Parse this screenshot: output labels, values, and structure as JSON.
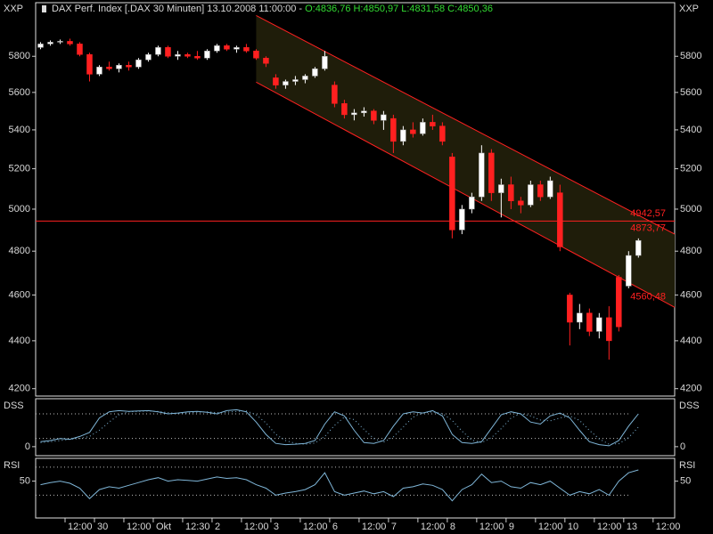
{
  "chart_data": [
    {
      "type": "candlestick",
      "title": "DAX Perf. Index [.DAX  30 Minuten] 13.10.2008 11:00:00 -",
      "ohlc_labels": [
        "O:4836,76",
        "H:4850,97",
        "L:4831,58",
        "C:4850,36"
      ],
      "axis_tag": "XXP",
      "log_scale": true,
      "ylim": [
        4170,
        6110
      ],
      "yticks": [
        4200,
        4400,
        4600,
        4800,
        5000,
        5200,
        5400,
        5600,
        5800
      ],
      "xlim": [
        0,
        65.2
      ],
      "xticks": [
        {
          "value": 3,
          "label": "12:00"
        },
        {
          "value": 6,
          "label": "30"
        },
        {
          "value": 9,
          "label": "12:00"
        },
        {
          "value": 12,
          "label": "Okt"
        },
        {
          "value": 15,
          "label": "12:30"
        },
        {
          "value": 18,
          "label": "2"
        },
        {
          "value": 21,
          "label": "12:00"
        },
        {
          "value": 24,
          "label": "3"
        },
        {
          "value": 27,
          "label": "12:00"
        },
        {
          "value": 30,
          "label": "6"
        },
        {
          "value": 33,
          "label": "12:00"
        },
        {
          "value": 36,
          "label": "7"
        },
        {
          "value": 39,
          "label": "12:00"
        },
        {
          "value": 42,
          "label": "8"
        },
        {
          "value": 45,
          "label": "12:00"
        },
        {
          "value": 48,
          "label": "9"
        },
        {
          "value": 51,
          "label": "12:00"
        },
        {
          "value": 54,
          "label": "10"
        },
        {
          "value": 57,
          "label": "12:00"
        },
        {
          "value": 60,
          "label": "13"
        },
        {
          "value": 63,
          "label": "12:00"
        }
      ],
      "up_color": "#ffffff",
      "down_color": "#ff2020",
      "open": [
        5850,
        5870,
        5880,
        5885,
        5870,
        5810,
        5700,
        5740,
        5730,
        5750,
        5740,
        5780,
        5810,
        5850,
        5800,
        5810,
        5800,
        5790,
        5830,
        5860,
        5840,
        5850,
        5830,
        5790,
        5680,
        5640,
        5660,
        5670,
        5690,
        5730,
        5640,
        5540,
        5480,
        5490,
        5500,
        5450,
        5460,
        5340,
        5400,
        5380,
        5440,
        5420,
        5260,
        4900,
        5000,
        5060,
        5280,
        5080,
        5120,
        5040,
        5020,
        5120,
        5060,
        5080,
        4600,
        4480,
        4520,
        4440,
        4500,
        4680,
        4640,
        4780
      ],
      "high": [
        5880,
        5890,
        5895,
        5900,
        5880,
        5820,
        5750,
        5770,
        5760,
        5770,
        5790,
        5820,
        5860,
        5860,
        5830,
        5820,
        5830,
        5840,
        5870,
        5870,
        5860,
        5870,
        5840,
        5800,
        5700,
        5670,
        5690,
        5700,
        5740,
        5830,
        5660,
        5560,
        5510,
        5520,
        5510,
        5500,
        5480,
        5420,
        5440,
        5460,
        5480,
        5440,
        5280,
        5020,
        5080,
        5320,
        5300,
        5150,
        5160,
        5060,
        5140,
        5140,
        5160,
        5120,
        4610,
        4560,
        4540,
        4520,
        4550,
        4690,
        4800,
        4860
      ],
      "low": [
        5840,
        5860,
        5870,
        5860,
        5800,
        5660,
        5690,
        5720,
        5710,
        5720,
        5730,
        5770,
        5800,
        5790,
        5780,
        5790,
        5780,
        5780,
        5820,
        5830,
        5820,
        5820,
        5780,
        5740,
        5620,
        5620,
        5640,
        5650,
        5680,
        5720,
        5520,
        5460,
        5450,
        5470,
        5430,
        5400,
        5280,
        5320,
        5360,
        5370,
        5400,
        5320,
        4860,
        4880,
        4980,
        5040,
        5040,
        4960,
        5000,
        4980,
        5010,
        5040,
        5050,
        4800,
        4380,
        4450,
        4420,
        4410,
        4320,
        4440,
        4630,
        4770
      ],
      "close": [
        5870,
        5880,
        5885,
        5870,
        5810,
        5700,
        5740,
        5730,
        5750,
        5740,
        5780,
        5810,
        5850,
        5800,
        5810,
        5800,
        5790,
        5830,
        5860,
        5840,
        5850,
        5830,
        5790,
        5760,
        5640,
        5660,
        5670,
        5690,
        5730,
        5800,
        5540,
        5480,
        5490,
        5500,
        5450,
        5480,
        5340,
        5400,
        5380,
        5440,
        5420,
        5340,
        4900,
        5000,
        5060,
        5280,
        5080,
        5120,
        5040,
        5020,
        5120,
        5060,
        5140,
        4820,
        4480,
        4520,
        4440,
        4500,
        4400,
        4460,
        4780,
        4850
      ],
      "hline": {
        "value": 4942.57,
        "label": "4942,57",
        "color": "#ff2020"
      },
      "channel": {
        "x": [
          22.5,
          65.2
        ],
        "upper": [
          6034,
          4880
        ],
        "lower": [
          5656,
          4545
        ],
        "color": "#ff2020",
        "fill": "#1f1d0a",
        "labels": [
          {
            "value": 4873.77,
            "label": "4873,77"
          },
          {
            "value": 4560.48,
            "label": "4560,48"
          }
        ]
      }
    },
    {
      "type": "line",
      "name": "DSS",
      "ylim": [
        -22,
        117
      ],
      "yticks": [
        0
      ],
      "levels": [
        20,
        80
      ],
      "series": [
        {
          "color": "#7fb6d8",
          "dash": false,
          "values": [
            12,
            15,
            20,
            18,
            25,
            35,
            70,
            85,
            88,
            86,
            87,
            88,
            85,
            80,
            82,
            85,
            86,
            84,
            80,
            88,
            90,
            85,
            60,
            30,
            8,
            5,
            6,
            8,
            15,
            55,
            85,
            75,
            40,
            10,
            8,
            15,
            50,
            80,
            85,
            82,
            88,
            75,
            30,
            10,
            8,
            12,
            45,
            78,
            85,
            80,
            60,
            55,
            75,
            82,
            70,
            40,
            12,
            5,
            2,
            15,
            50,
            80
          ]
        },
        {
          "color": "#7fb6d8",
          "dash": true,
          "values": [
            10,
            12,
            15,
            18,
            20,
            25,
            40,
            60,
            78,
            85,
            86,
            87,
            86,
            83,
            81,
            82,
            84,
            85,
            83,
            84,
            86,
            87,
            78,
            58,
            30,
            15,
            8,
            6,
            9,
            25,
            52,
            72,
            66,
            42,
            20,
            11,
            24,
            48,
            72,
            82,
            85,
            81,
            64,
            38,
            16,
            10,
            22,
            44,
            70,
            81,
            75,
            65,
            63,
            70,
            75,
            64,
            40,
            19,
            6,
            7,
            22,
            48
          ]
        }
      ]
    },
    {
      "type": "line",
      "name": "RSI",
      "ylim": [
        -2.5,
        82.5
      ],
      "yticks": [
        50
      ],
      "levels": [
        30,
        70
      ],
      "series": [
        {
          "color": "#7fb6d8",
          "dash": false,
          "values": [
            45,
            48,
            50,
            47,
            40,
            25,
            38,
            42,
            40,
            44,
            48,
            52,
            55,
            50,
            52,
            51,
            50,
            53,
            56,
            54,
            55,
            52,
            45,
            40,
            30,
            33,
            35,
            38,
            45,
            62,
            35,
            30,
            33,
            36,
            32,
            35,
            28,
            40,
            42,
            46,
            44,
            38,
            22,
            38,
            45,
            60,
            48,
            50,
            42,
            40,
            48,
            45,
            50,
            40,
            30,
            35,
            32,
            38,
            30,
            50,
            62,
            66
          ]
        }
      ]
    }
  ]
}
